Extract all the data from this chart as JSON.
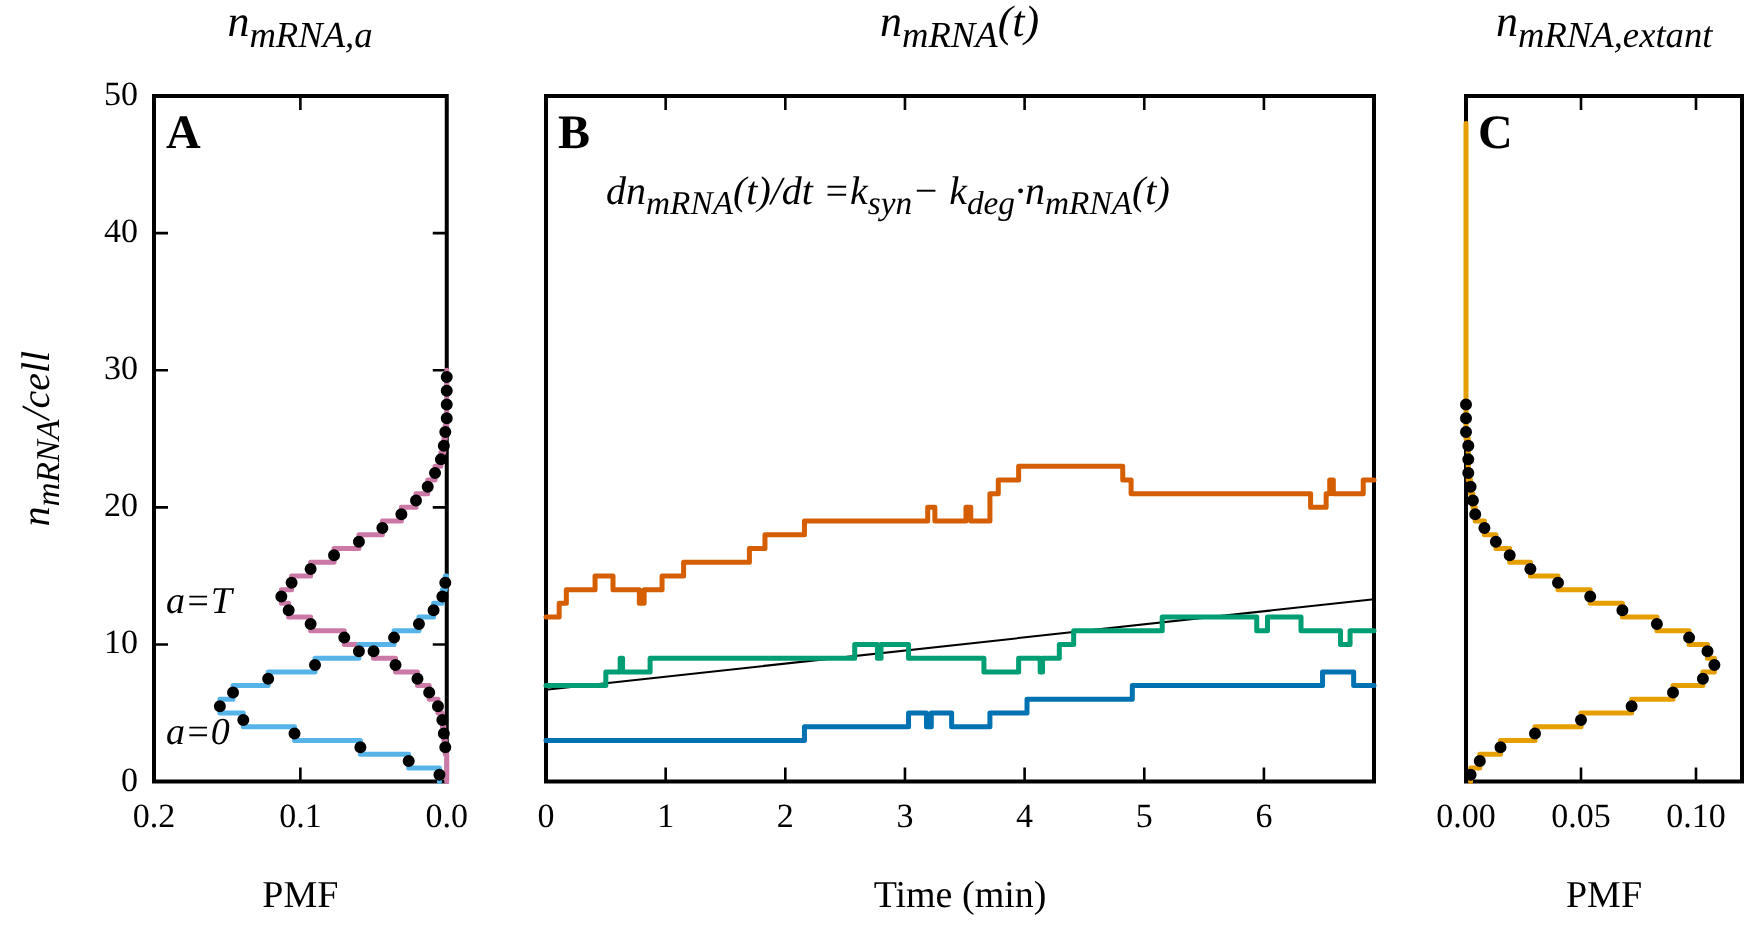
{
  "chart_data": [
    {
      "type": "step",
      "title": "n$_{mRNA,a}$",
      "xlabel": "PMF",
      "ylabel": "n$_{mRNA}$/cell",
      "orientation": "horizontal",
      "xlim": [
        0.2,
        0
      ],
      "xticks": [
        {
          "value": 0.2,
          "label": "0.2"
        },
        {
          "value": 0.1,
          "label": "0.1"
        },
        {
          "value": 0,
          "label": "0.0"
        }
      ],
      "ylim": [
        0,
        50
      ],
      "yticks": [
        0,
        10,
        20,
        30,
        40,
        50
      ],
      "annotations": [
        "A"
      ],
      "legend": false,
      "series": [
        {
          "name": "a=0",
          "color": "#56b4e9",
          "x": [
            0,
            1,
            2,
            3,
            4,
            5,
            6,
            7,
            8,
            9,
            10,
            11,
            12,
            13,
            14,
            15
          ],
          "values": [
            0.005,
            0.026,
            0.059,
            0.104,
            0.139,
            0.155,
            0.146,
            0.122,
            0.09,
            0.06,
            0.036,
            0.019,
            0.009,
            0.003,
            0.001,
            0
          ]
        },
        {
          "name": "a=T",
          "color": "#cc79a7",
          "x": [
            0,
            1,
            2,
            3,
            4,
            5,
            6,
            7,
            8,
            9,
            10,
            11,
            12,
            13,
            14,
            15,
            16,
            17,
            18,
            19,
            20,
            21,
            22,
            23,
            24,
            25,
            26,
            27,
            28,
            29,
            30
          ],
          "values": [
            0,
            0,
            0.001,
            0.002,
            0.003,
            0.006,
            0.012,
            0.02,
            0.035,
            0.05,
            0.07,
            0.093,
            0.108,
            0.113,
            0.106,
            0.093,
            0.077,
            0.06,
            0.044,
            0.031,
            0.021,
            0.013,
            0.008,
            0.004,
            0.002,
            0.001,
            0,
            0,
            0,
            0,
            0
          ]
        },
        {
          "type": "scatter",
          "marker": "circle",
          "color": "#000000",
          "x": [
            0.5,
            1.5,
            2.5,
            3.5,
            4.5,
            5.5,
            6.5,
            7.5,
            8.5,
            9.5,
            10.5,
            11.5,
            12.5,
            13.5,
            14.5
          ],
          "values": [
            0.005,
            0.026,
            0.059,
            0.104,
            0.139,
            0.155,
            0.146,
            0.122,
            0.09,
            0.06,
            0.036,
            0.019,
            0.009,
            0.003,
            0.001
          ]
        },
        {
          "type": "scatter",
          "marker": "circle",
          "color": "#000000",
          "x": [
            2.5,
            3.5,
            4.5,
            5.5,
            6.5,
            7.5,
            8.5,
            9.5,
            10.5,
            11.5,
            12.5,
            13.5,
            14.5,
            15.5,
            16.5,
            17.5,
            18.5,
            19.5,
            20.5,
            21.5,
            22.5,
            23.5,
            24.5,
            25.5,
            26.5,
            27.5,
            28.5,
            29.5
          ],
          "values": [
            0.001,
            0.002,
            0.003,
            0.006,
            0.012,
            0.02,
            0.035,
            0.05,
            0.07,
            0.093,
            0.108,
            0.113,
            0.106,
            0.093,
            0.077,
            0.06,
            0.044,
            0.031,
            0.021,
            0.013,
            0.008,
            0.004,
            0.002,
            0.001,
            0,
            0,
            0,
            0
          ]
        }
      ]
    },
    {
      "type": "step",
      "title": "n$_{mRNA}$(t)",
      "xlabel": "Time (min)",
      "xlim": [
        0,
        6.92
      ],
      "xticks": [
        0,
        1,
        2,
        3,
        4,
        5,
        6
      ],
      "ylim": [
        0,
        50
      ],
      "tick_labels": "x",
      "annotations": [
        "B",
        "dn$_{mRNA}$(t)/dt =k$_{syn}$− k$_{deg}$·n$_{mRNA}$(t)"
      ],
      "legend": false,
      "series": [
        {
          "color": "#d55e00",
          "x": [
            0,
            0.11,
            0.17,
            0.41,
            0.56,
            0.78,
            0.82,
            0.97,
            1.15,
            1.7,
            1.83,
            2.16,
            3.19,
            3.25,
            3.51,
            3.55,
            3.71,
            3.78,
            3.95,
            4.82,
            4.89,
            6.39,
            6.52,
            6.55,
            6.58,
            6.83,
            6.92
          ],
          "values": [
            12,
            13,
            14,
            15,
            14,
            13,
            14,
            15,
            16,
            17,
            18,
            19,
            20,
            19,
            20,
            19,
            21,
            22,
            23,
            22,
            21,
            20,
            21,
            22,
            21,
            22,
            22
          ]
        },
        {
          "color": "#009e73",
          "x": [
            0,
            0.5,
            0.62,
            0.64,
            0.87,
            2.58,
            2.77,
            2.8,
            3.03,
            3.66,
            3.95,
            4.13,
            4.15,
            4.29,
            4.41,
            5.15,
            5.94,
            6.03,
            6.31,
            6.64,
            6.72,
            6.92
          ],
          "values": [
            7,
            8,
            9,
            8,
            9,
            10,
            9,
            10,
            9,
            8,
            9,
            8,
            9,
            10,
            11,
            12,
            11,
            12,
            11,
            10,
            11,
            11
          ]
        },
        {
          "color": "#0072b2",
          "x": [
            0,
            2.16,
            3.03,
            3.18,
            3.22,
            3.39,
            3.71,
            4.02,
            4.9,
            6.49,
            6.75,
            6.92
          ],
          "values": [
            3,
            4,
            5,
            4,
            5,
            4,
            5,
            6,
            7,
            8,
            7,
            7
          ]
        },
        {
          "type": "line",
          "color": "#000000",
          "x": [
            0,
            6.92
          ],
          "values": [
            6.7,
            13.3
          ]
        }
      ]
    },
    {
      "type": "step",
      "title": "n$_{mRNA,extant}$",
      "xlabel": "PMF",
      "orientation": "horizontal",
      "xlim": [
        0,
        0.12
      ],
      "xticks": [
        {
          "value": 0,
          "label": "0.00"
        },
        {
          "value": 0.05,
          "label": "0.05"
        },
        {
          "value": 0.1,
          "label": "0.10"
        }
      ],
      "ylim": [
        0,
        50
      ],
      "tick_labels": "x",
      "annotations": [
        "C"
      ],
      "legend": false,
      "series": [
        {
          "color": "#e69f00",
          "x": [
            0,
            1,
            2,
            3,
            4,
            5,
            6,
            7,
            8,
            9,
            10,
            11,
            12,
            13,
            14,
            15,
            16,
            17,
            18,
            19,
            20,
            21,
            22,
            23,
            24,
            25,
            26,
            27,
            28,
            29,
            30,
            31,
            32,
            33,
            34,
            35,
            36,
            37,
            38,
            39,
            40,
            41,
            42,
            43,
            44,
            45,
            46,
            47,
            48
          ],
          "values": [
            0.002,
            0.006,
            0.015,
            0.03,
            0.05,
            0.072,
            0.09,
            0.103,
            0.108,
            0.105,
            0.097,
            0.083,
            0.068,
            0.054,
            0.04,
            0.028,
            0.019,
            0.013,
            0.008,
            0.004,
            0.003,
            0.002,
            0.001,
            0.001,
            0.001,
            0,
            0,
            0,
            0,
            0,
            0,
            0,
            0,
            0,
            0,
            0,
            0,
            0,
            0,
            0,
            0,
            0,
            0,
            0,
            0,
            0,
            0,
            0,
            0
          ]
        },
        {
          "type": "scatter",
          "marker": "circle",
          "color": "#000000",
          "x": [
            0.5,
            1.5,
            2.5,
            3.5,
            4.5,
            5.5,
            6.5,
            7.5,
            8.5,
            9.5,
            10.5,
            11.5,
            12.5,
            13.5,
            14.5,
            15.5,
            16.5,
            17.5,
            18.5,
            19.5,
            20.5,
            21.5,
            22.5,
            23.5,
            24.5,
            25.5,
            26.5,
            27.5
          ],
          "values": [
            0.002,
            0.006,
            0.015,
            0.03,
            0.05,
            0.072,
            0.09,
            0.103,
            0.108,
            0.105,
            0.097,
            0.083,
            0.068,
            0.054,
            0.04,
            0.028,
            0.019,
            0.013,
            0.008,
            0.004,
            0.003,
            0.002,
            0.001,
            0.001,
            0.001,
            0,
            0,
            0
          ]
        }
      ]
    }
  ]
}
